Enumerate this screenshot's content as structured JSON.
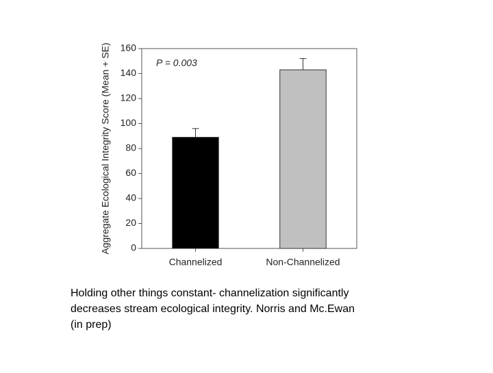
{
  "chart_data": {
    "type": "bar",
    "y_label": "Aggregate Ecological Integrity Score (Mean + SE)",
    "annotation": "P = 0.003",
    "categories": [
      "Channelized",
      "Non-Channelized"
    ],
    "values": [
      89,
      143
    ],
    "errors": [
      7,
      9
    ],
    "colors": [
      "#000000",
      "#c0c0c0"
    ],
    "ylim": [
      0,
      160
    ],
    "yticks": [
      0,
      20,
      40,
      60,
      80,
      100,
      120,
      140,
      160
    ],
    "grid": false
  },
  "caption": [
    "Holding other things constant- channelization significantly",
    "decreases stream ecological integrity.  Norris and Mc.Ewan",
    "(in prep)"
  ]
}
